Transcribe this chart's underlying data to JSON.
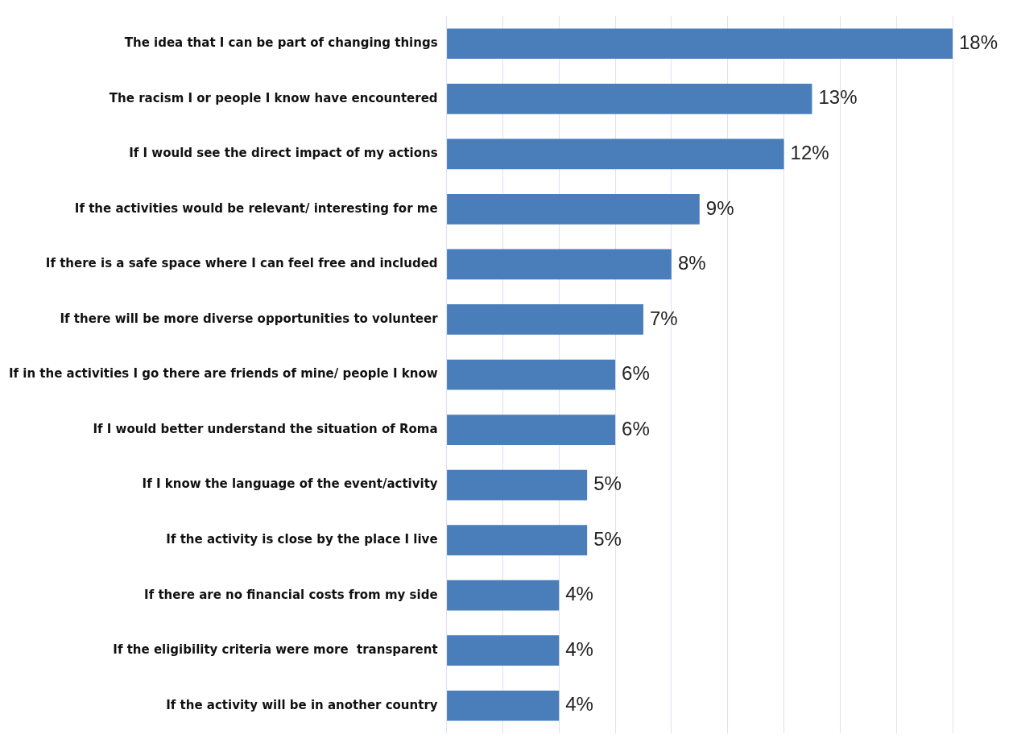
{
  "chart_data": {
    "type": "bar",
    "orientation": "horizontal",
    "categories": [
      "The idea that I can be part of changing things",
      "The racism I or people I know have encountered",
      "If I would see the direct impact of my actions",
      "If the activities would be relevant/ interesting for me",
      "If there is a safe space where I can feel free and included",
      "If there will be more diverse opportunities to volunteer",
      "If in the activities I go there are friends of mine/ people I know",
      "If I would better understand the situation of Roma",
      "If I know the language of the event/activity",
      "If the activity is close by the place I live",
      "If there are no financial costs from my side",
      "If the eligibility criteria were more  transparent",
      "If the activity will be in another country"
    ],
    "values": [
      18,
      13,
      12,
      9,
      8,
      7,
      6,
      6,
      5,
      5,
      4,
      4,
      4
    ],
    "value_labels": [
      "18%",
      "13%",
      "12%",
      "9%",
      "8%",
      "7%",
      "6%",
      "6%",
      "5%",
      "5%",
      "4%",
      "4%",
      "4%"
    ],
    "color": "#4a7ebb",
    "tick_labels": "y",
    "legend": false
  }
}
